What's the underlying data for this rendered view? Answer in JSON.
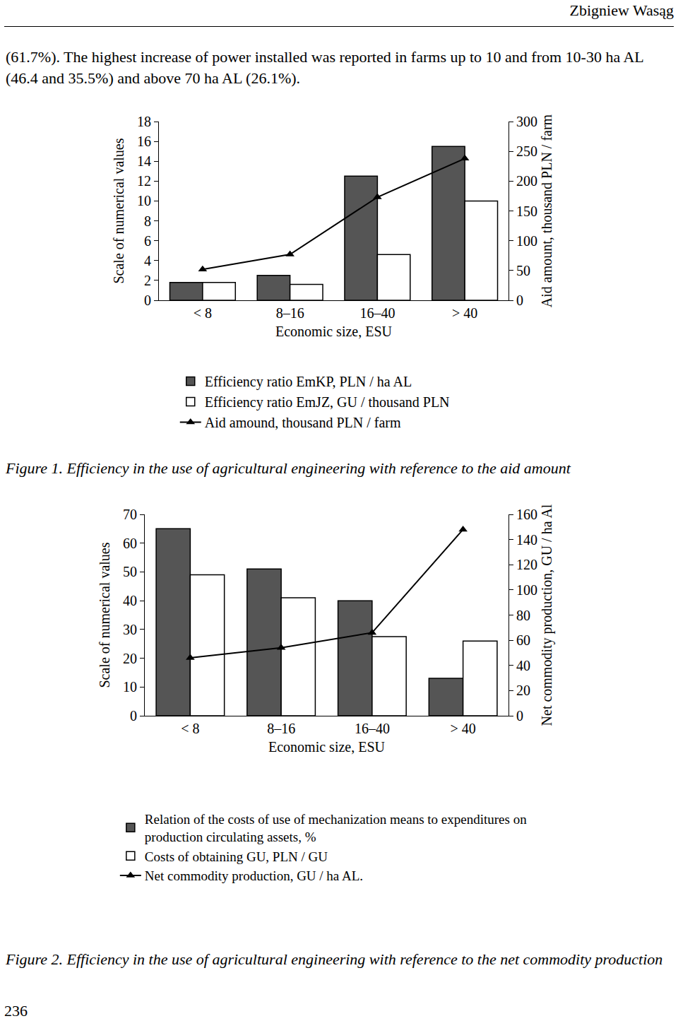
{
  "header": "Zbigniew Wasąg",
  "paragraph": "(61.7%). The highest increase of power installed was reported in farms up to 10 and from 10-30 ha AL (46.4 and 35.5%) and above 70 ha AL (26.1%).",
  "chart_data": [
    {
      "type": "bar",
      "categories": [
        "< 8",
        "8–16",
        "16–40",
        "> 40"
      ],
      "xlabel": "Economic size, ESU",
      "ylabel": "Scale of numerical values",
      "y2label": "Aid amount, thousand PLN / farm",
      "ylim": [
        0,
        18
      ],
      "yticks": [
        0,
        2,
        4,
        6,
        8,
        10,
        12,
        14,
        16,
        18
      ],
      "y2lim": [
        0,
        300
      ],
      "y2ticks": [
        0,
        50,
        100,
        150,
        200,
        250,
        300
      ],
      "grid": false,
      "legend": "bottom",
      "series": [
        {
          "name": "Efficiency ratio EmKP, PLN / ha AL",
          "type": "bar",
          "color": "#555555",
          "values": [
            1.8,
            2.5,
            12.5,
            15.5
          ]
        },
        {
          "name": "Efficiency ratio EmJZ, GU / thousand PLN",
          "type": "bar",
          "color": "#ffffff",
          "values": [
            1.8,
            1.6,
            4.6,
            10.0
          ]
        },
        {
          "name": "Aid amound, thousand PLN / farm",
          "type": "line",
          "axis": "y2",
          "color": "#000000",
          "marker": "triangle-up",
          "line_style": "solid",
          "values": [
            52,
            77,
            173,
            238
          ]
        }
      ]
    },
    {
      "type": "bar",
      "categories": [
        "< 8",
        "8–16",
        "16–40",
        "> 40"
      ],
      "xlabel": "Economic size, ESU",
      "ylabel": "Scale of numerical values",
      "y2label": "Net commodity production, GU / ha Al",
      "ylim": [
        0,
        70
      ],
      "yticks": [
        0,
        10,
        20,
        30,
        40,
        50,
        60,
        70
      ],
      "y2lim": [
        0,
        160
      ],
      "y2ticks": [
        0,
        20,
        40,
        60,
        80,
        100,
        120,
        140,
        160
      ],
      "grid": false,
      "legend": "bottom",
      "series": [
        {
          "name": "Relation of the costs of use of mechanization means to expenditures on\nproduction circulating assets, %",
          "type": "bar",
          "color": "#555555",
          "values": [
            65,
            51,
            40,
            13
          ]
        },
        {
          "name": "Costs of obtaining GU, PLN / GU",
          "type": "bar",
          "color": "#ffffff",
          "values": [
            49,
            41,
            27.5,
            26
          ]
        },
        {
          "name": "Net commodity production, GU / ha AL.",
          "type": "line",
          "axis": "y2",
          "color": "#000000",
          "marker": "triangle-up",
          "line_style": "solid",
          "values": [
            46,
            54,
            66,
            148
          ]
        }
      ]
    }
  ],
  "captions": [
    "Figure 1. Efficiency in the use of agricultural engineering with reference to the aid amount",
    "Figure 2. Efficiency in the use of agricultural engineering with reference to the net commodity production"
  ],
  "page_number": 236
}
